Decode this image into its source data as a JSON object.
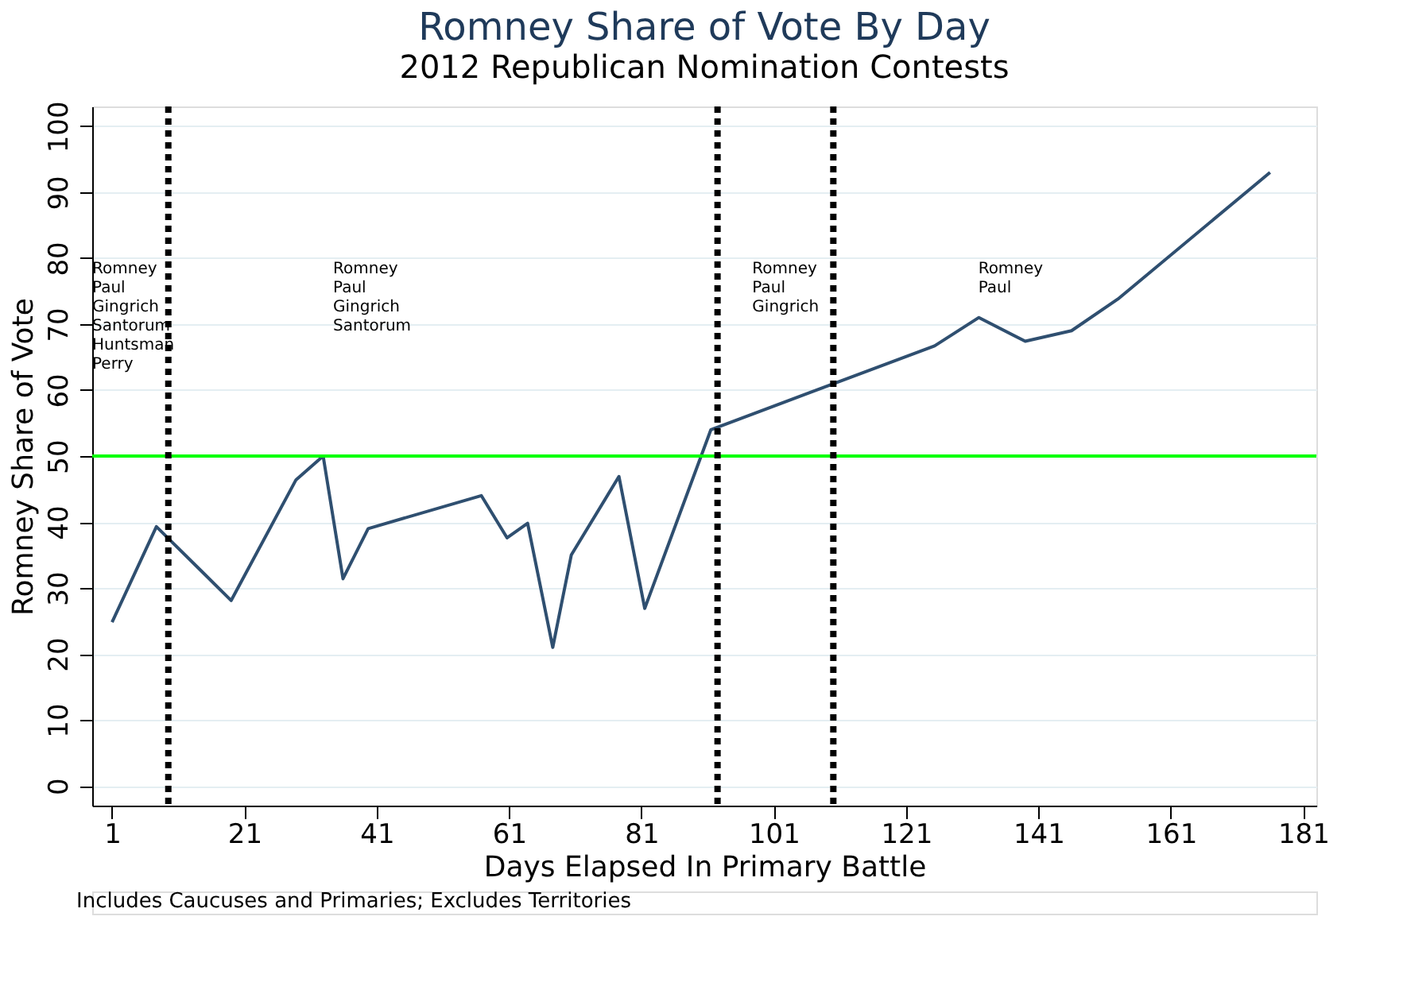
{
  "chart_data": {
    "type": "line",
    "title": "Romney Share of Vote By Day",
    "subtitle": "2012 Republican Nomination Contests",
    "xlabel": "Days Elapsed In Primary Battle",
    "ylabel": "Romney Share of Vote",
    "x": [
      1,
      7.7,
      19,
      28.8,
      32.9,
      35.9,
      39.7,
      56.8,
      60.7,
      63.8,
      67.6,
      70.4,
      77.6,
      81.5,
      91.5,
      125.3,
      132,
      139,
      146,
      153,
      176
    ],
    "series": [
      {
        "color": "#2f4f70",
        "values": [
          24.8,
          39.3,
          28.1,
          46.4,
          50,
          31.4,
          39,
          44,
          37.6,
          39.8,
          21,
          35,
          46.9,
          26.9,
          54,
          66.7,
          71,
          67.4,
          69,
          73.8,
          93
        ]
      }
    ],
    "xlim": [
      -2,
      183
    ],
    "xticks": [
      1,
      21,
      41,
      61,
      81,
      101,
      121,
      141,
      161,
      181
    ],
    "ylim": [
      -3,
      103
    ],
    "yticks": [
      0,
      10,
      20,
      30,
      40,
      50,
      60,
      70,
      80,
      90,
      100
    ],
    "grid": "y",
    "line_style": "solid",
    "marker": "none",
    "ref_lines": [
      {
        "axis": "y",
        "value": 50,
        "color": "#00ff00",
        "line_style": "solid"
      },
      {
        "axis": "x",
        "value": 9.5,
        "color": "#000000",
        "line_style": "dotted"
      },
      {
        "axis": "x",
        "value": 92.5,
        "color": "#000000",
        "line_style": "dotted"
      },
      {
        "axis": "x",
        "value": 110,
        "color": "#000000",
        "line_style": "dotted"
      }
    ],
    "annotations": [
      "Romney\nPaul\nGingrich\nSantorum\nHuntsman\nPerry",
      "Romney\nPaul\nGingrich\nSantorum",
      "Romney\nPaul\nGingrich",
      "Romney\nPaul",
      "Includes Caucuses and Primaries; Excludes Territories"
    ]
  }
}
